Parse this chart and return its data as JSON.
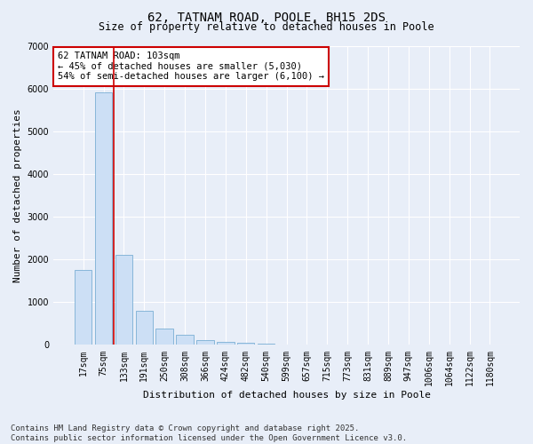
{
  "title": "62, TATNAM ROAD, POOLE, BH15 2DS",
  "subtitle": "Size of property relative to detached houses in Poole",
  "xlabel": "Distribution of detached houses by size in Poole",
  "ylabel": "Number of detached properties",
  "categories": [
    "17sqm",
    "75sqm",
    "133sqm",
    "191sqm",
    "250sqm",
    "308sqm",
    "366sqm",
    "424sqm",
    "482sqm",
    "540sqm",
    "599sqm",
    "657sqm",
    "715sqm",
    "773sqm",
    "831sqm",
    "889sqm",
    "947sqm",
    "1006sqm",
    "1064sqm",
    "1122sqm",
    "1180sqm"
  ],
  "values": [
    1750,
    5900,
    2100,
    800,
    380,
    230,
    120,
    80,
    55,
    30,
    10,
    5,
    3,
    0,
    0,
    0,
    0,
    0,
    0,
    0,
    0
  ],
  "bar_color": "#ccdff5",
  "bar_edge_color": "#7aafd4",
  "red_line_x": 1.5,
  "red_line_color": "#cc0000",
  "annotation_text": "62 TATNAM ROAD: 103sqm\n← 45% of detached houses are smaller (5,030)\n54% of semi-detached houses are larger (6,100) →",
  "annotation_box_color": "#ffffff",
  "annotation_box_edge": "#cc0000",
  "ylim": [
    0,
    7000
  ],
  "yticks": [
    0,
    1000,
    2000,
    3000,
    4000,
    5000,
    6000,
    7000
  ],
  "background_color": "#e8eef8",
  "grid_color": "#ffffff",
  "footer": "Contains HM Land Registry data © Crown copyright and database right 2025.\nContains public sector information licensed under the Open Government Licence v3.0.",
  "title_fontsize": 10,
  "subtitle_fontsize": 8.5,
  "label_fontsize": 8,
  "tick_fontsize": 7,
  "annotation_fontsize": 7.5,
  "footer_fontsize": 6.5
}
